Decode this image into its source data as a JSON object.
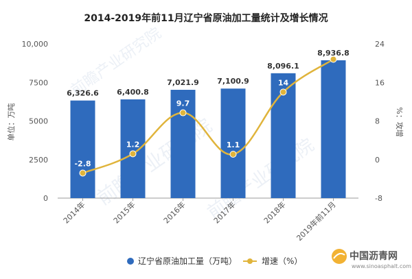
{
  "chart_data": {
    "type": "bar",
    "title": "2014-2019年前11月辽宁省原油加工量统计及增长情况",
    "categories": [
      "2014年",
      "2015年",
      "2016年",
      "2017年",
      "2018年",
      "2019年前11月"
    ],
    "series": [
      {
        "name": "辽宁省原油加工量（万吨）",
        "type": "bar",
        "axis": "left",
        "color": "#2f6bbd",
        "values": [
          6326.6,
          6400.8,
          7021.9,
          7100.9,
          8096.1,
          8936.8
        ],
        "labels": [
          "6,326.6",
          "6,400.8",
          "7,021.9",
          "7,100.9",
          "8,096.1",
          "8,936.8"
        ]
      },
      {
        "name": "增速（%）",
        "type": "line",
        "axis": "right",
        "color": "#e0b43b",
        "values": [
          -2.8,
          1.2,
          9.7,
          1.1,
          14,
          20.8
        ],
        "labels": [
          "-2.8",
          "1.2",
          "9.7",
          "1.1",
          "14",
          ""
        ]
      }
    ],
    "y_left": {
      "label": "单位：万吨",
      "ylim": [
        0,
        10000
      ],
      "ticks": [
        0,
        2500,
        5000,
        7500,
        10000
      ],
      "tick_labels": [
        "0",
        "2500",
        "5000",
        "7500",
        "10,000"
      ]
    },
    "y_right": {
      "label": "%：攻增",
      "ylim": [
        -8,
        24
      ],
      "ticks": [
        -8,
        0,
        8,
        16,
        24
      ],
      "tick_labels": [
        "-8",
        "0",
        "8",
        "16",
        "24"
      ]
    },
    "grid": false,
    "legend_position": "bottom"
  },
  "watermark": {
    "text": "前瞻产业研究院",
    "color": "#c9d7e8"
  },
  "source_logo": {
    "text": "中国沥青网",
    "url_text": "www.sinoasphalt.com"
  }
}
